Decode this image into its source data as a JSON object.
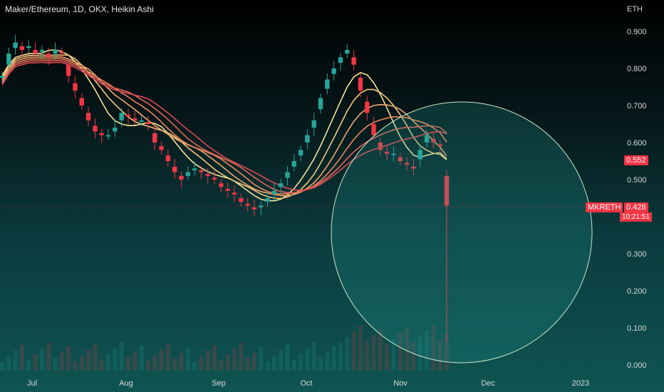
{
  "header": {
    "title": "Maker/Ethereum, 1D, OKX, Heikin Ashi",
    "unit": "ETH"
  },
  "price_badges": {
    "prior": "0.552",
    "symbol": "MKRETH",
    "last": "0.428",
    "countdown": "10:21:51"
  },
  "colors": {
    "up": "#26a69a",
    "down": "#f23645",
    "circle": "#c8e6c9"
  },
  "chart_data": {
    "type": "candlestick",
    "title": "Maker/Ethereum, 1D, OKX, Heikin Ashi",
    "ylabel": "ETH",
    "ylim": [
      0.0,
      0.9
    ],
    "y_ticks": [
      "0.900",
      "0.800",
      "0.700",
      "0.600",
      "0.500",
      "0.300",
      "0.200",
      "0.100",
      "0.000"
    ],
    "x_ticks": [
      "Jul",
      "Aug",
      "Sep",
      "Oct",
      "Nov",
      "Dec",
      "2023"
    ],
    "last_price": 0.428,
    "prior_price": 0.552,
    "series": [
      {
        "name": "",
        "anchor": "Jul",
        "values": [
          0.78,
          0.84,
          0.87,
          0.85,
          0.86,
          0.84,
          0.85,
          0.83,
          0.85,
          0.84,
          0.78,
          0.74,
          0.7,
          0.66,
          0.63,
          0.62,
          0.62,
          0.64,
          0.68,
          0.67,
          0.66,
          0.66,
          0.65,
          0.6,
          0.58,
          0.55,
          0.52,
          0.5,
          0.52,
          0.53,
          0.52,
          0.51,
          0.5,
          0.48,
          0.47,
          0.46,
          0.44,
          0.43,
          0.42,
          0.43,
          0.45,
          0.47,
          0.49,
          0.52,
          0.55,
          0.58,
          0.62,
          0.66,
          0.72,
          0.77,
          0.8,
          0.83,
          0.85,
          0.81,
          0.74,
          0.68,
          0.62,
          0.58,
          0.57,
          0.57,
          0.55,
          0.54,
          0.53,
          0.58,
          0.62,
          0.6,
          0.59,
          0.43
        ]
      }
    ]
  }
}
